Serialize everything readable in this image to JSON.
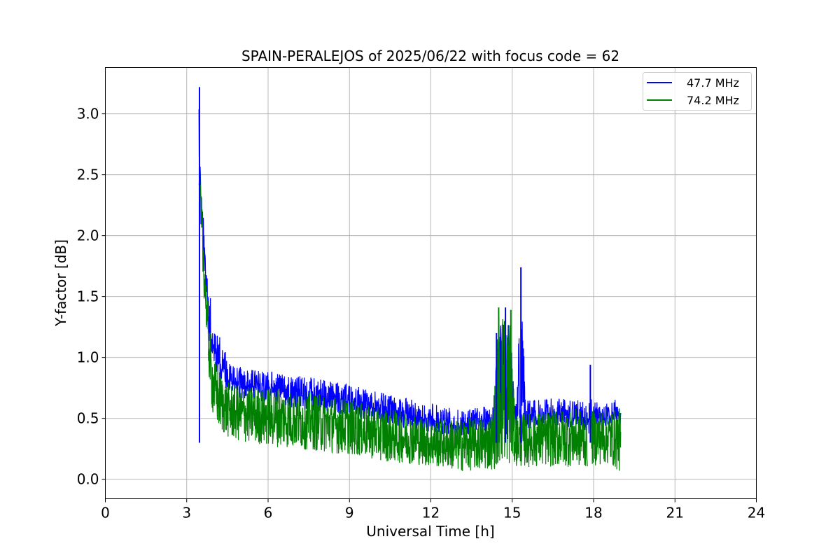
{
  "chart_data": {
    "type": "line",
    "title": "SPAIN-PERALEJOS of 2025/06/22 with focus code = 62",
    "xlabel": "Universal Time [h]",
    "ylabel": "Y-factor [dB]",
    "xlim": [
      0,
      24
    ],
    "ylim": [
      -0.16,
      3.38
    ],
    "xticks": [
      0,
      3,
      6,
      9,
      12,
      15,
      18,
      21,
      24
    ],
    "xtick_labels": [
      "0",
      "3",
      "6",
      "9",
      "12",
      "15",
      "18",
      "21",
      "24"
    ],
    "yticks": [
      0.0,
      0.5,
      1.0,
      1.5,
      2.0,
      2.5,
      3.0
    ],
    "ytick_labels": [
      "0.0",
      "0.5",
      "1.0",
      "1.5",
      "2.0",
      "2.5",
      "3.0"
    ],
    "grid": true,
    "legend_position": "top-right",
    "series": [
      {
        "name": "47.7 MHz",
        "color": "#0000ff",
        "x": [
          3.45,
          3.5,
          3.6,
          3.7,
          3.8,
          3.9,
          4.0,
          4.2,
          4.5,
          5.0,
          5.5,
          6.0,
          6.5,
          7.0,
          7.5,
          8.0,
          8.5,
          9.0,
          9.5,
          10.0,
          10.5,
          11.0,
          11.5,
          12.0,
          12.5,
          13.0,
          13.5,
          14.0,
          14.3,
          14.5,
          14.7,
          14.9,
          15.1,
          15.3,
          15.5,
          16.0,
          16.5,
          17.0,
          17.5,
          17.8,
          17.9,
          18.0,
          18.3,
          18.6,
          19.0
        ],
        "y_upper": [
          3.22,
          2.6,
          2.2,
          1.85,
          1.6,
          1.45,
          1.3,
          1.2,
          1.0,
          0.92,
          0.9,
          0.9,
          0.87,
          0.85,
          0.85,
          0.83,
          0.8,
          0.8,
          0.74,
          0.72,
          0.7,
          0.68,
          0.65,
          0.62,
          0.6,
          0.58,
          0.58,
          0.6,
          0.62,
          1.2,
          1.41,
          1.39,
          0.62,
          1.74,
          0.65,
          0.65,
          0.67,
          0.66,
          0.65,
          0.62,
          0.94,
          0.64,
          0.62,
          0.63,
          0.7
        ],
        "y_mid": [
          2.6,
          2.2,
          1.8,
          1.5,
          1.25,
          1.1,
          0.98,
          0.85,
          0.75,
          0.7,
          0.68,
          0.66,
          0.64,
          0.62,
          0.6,
          0.6,
          0.58,
          0.56,
          0.52,
          0.5,
          0.48,
          0.46,
          0.44,
          0.42,
          0.4,
          0.38,
          0.4,
          0.42,
          0.43,
          0.45,
          0.47,
          0.47,
          0.45,
          0.45,
          0.45,
          0.45,
          0.46,
          0.46,
          0.45,
          0.42,
          0.4,
          0.48,
          0.46,
          0.46,
          0.46
        ]
      },
      {
        "name": "74.2 MHz",
        "color": "#008000",
        "x": [
          3.45,
          3.5,
          3.6,
          3.7,
          3.8,
          3.9,
          4.0,
          4.2,
          4.5,
          5.0,
          5.5,
          6.0,
          6.5,
          7.0,
          7.5,
          8.0,
          8.5,
          9.0,
          9.5,
          10.0,
          10.5,
          11.0,
          11.5,
          12.0,
          12.5,
          13.0,
          13.5,
          14.0,
          14.3,
          14.5,
          14.7,
          14.9,
          15.1,
          15.3,
          15.5,
          16.0,
          16.5,
          17.0,
          17.5,
          17.8,
          17.9,
          18.0,
          18.3,
          18.6,
          19.0
        ],
        "y_lower": [
          2.3,
          2.0,
          1.6,
          1.3,
          0.9,
          0.6,
          0.48,
          0.4,
          0.34,
          0.3,
          0.29,
          0.27,
          0.26,
          0.25,
          0.24,
          0.22,
          0.21,
          0.2,
          0.18,
          0.16,
          0.14,
          0.13,
          0.12,
          0.1,
          0.09,
          0.06,
          0.07,
          0.07,
          0.08,
          0.09,
          0.1,
          0.1,
          0.11,
          0.1,
          0.1,
          0.1,
          0.1,
          0.1,
          0.1,
          0.09,
          0.12,
          0.11,
          0.12,
          0.12,
          0.05
        ],
        "y_upper": [
          2.7,
          2.5,
          2.1,
          1.7,
          1.35,
          1.15,
          1.0,
          0.9,
          0.8,
          0.77,
          0.76,
          0.76,
          0.75,
          0.73,
          0.72,
          0.7,
          0.68,
          0.67,
          0.62,
          0.6,
          0.58,
          0.56,
          0.53,
          0.5,
          0.5,
          0.5,
          0.5,
          0.52,
          0.55,
          1.41,
          1.4,
          1.39,
          0.55,
          0.55,
          0.55,
          0.56,
          0.57,
          0.58,
          0.58,
          0.54,
          0.56,
          0.57,
          0.58,
          0.58,
          0.58
        ]
      }
    ],
    "spikes": [
      {
        "series": "47.7 MHz",
        "x": 3.47,
        "y": 3.22
      },
      {
        "series": "47.7 MHz",
        "x": 14.42,
        "y": 1.2
      },
      {
        "series": "47.7 MHz",
        "x": 14.75,
        "y": 1.41
      },
      {
        "series": "47.7 MHz",
        "x": 15.32,
        "y": 1.74
      },
      {
        "series": "47.7 MHz",
        "x": 17.88,
        "y": 0.94
      },
      {
        "series": "74.2 MHz",
        "x": 14.5,
        "y": 1.41
      },
      {
        "series": "74.2 MHz",
        "x": 14.95,
        "y": 1.39
      }
    ]
  }
}
